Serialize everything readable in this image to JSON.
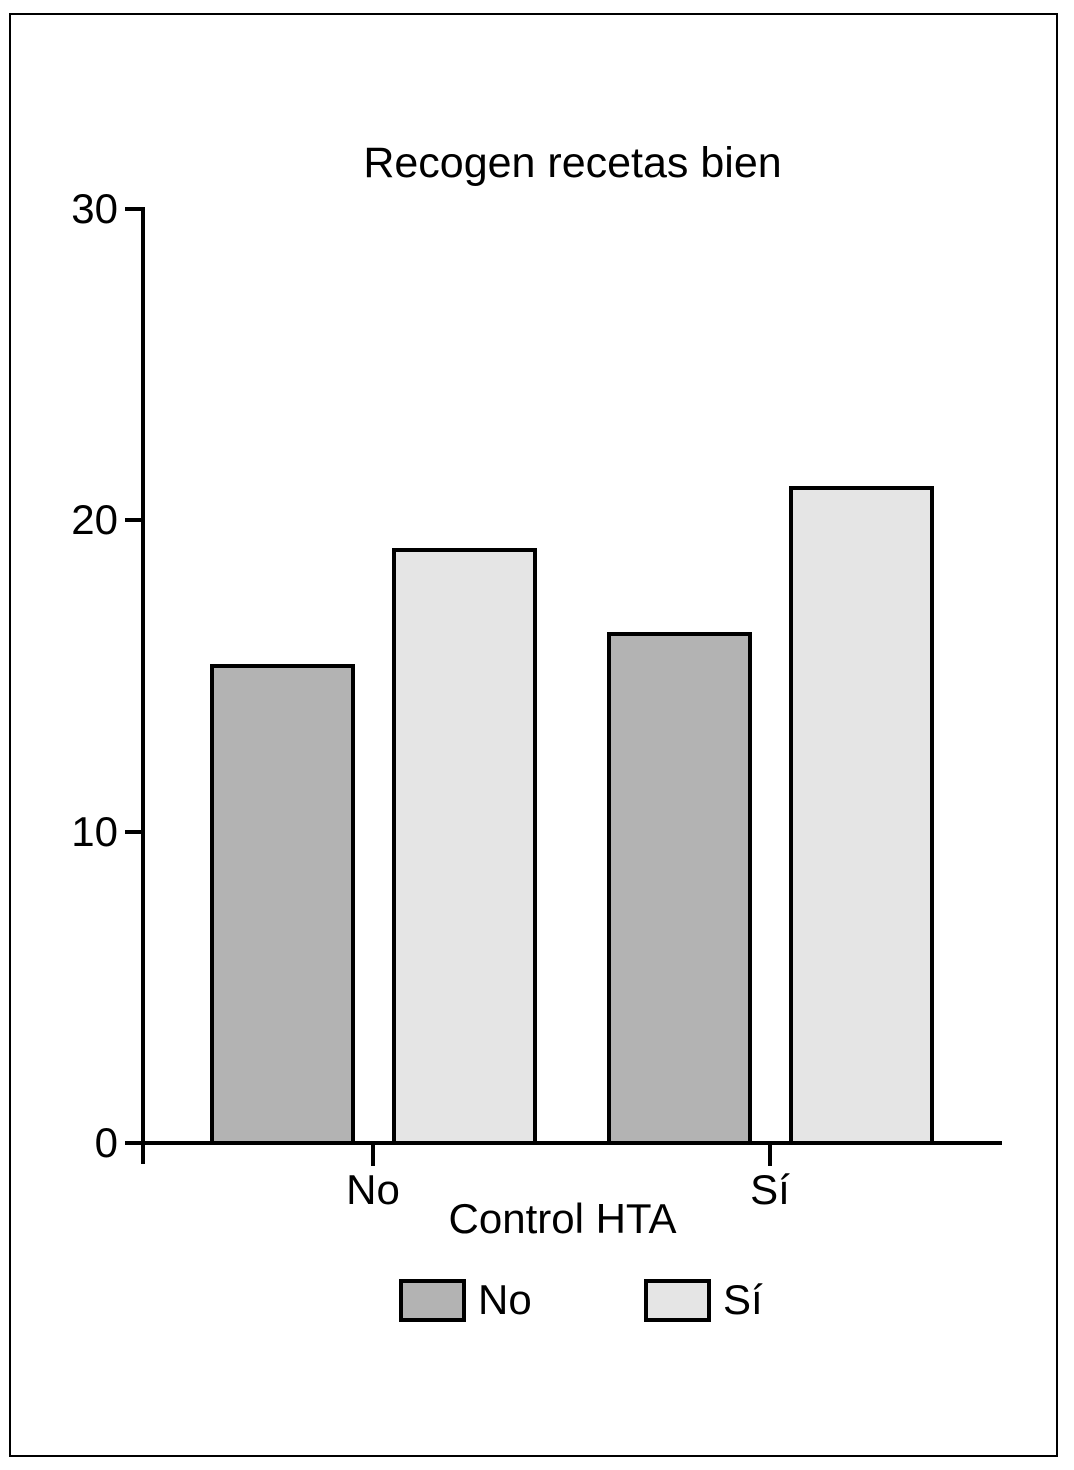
{
  "chart_data": {
    "type": "bar",
    "title": "Recogen recetas bien",
    "xlabel": "Control HTA",
    "ylabel": "",
    "categories": [
      "No",
      "Sí"
    ],
    "series": [
      {
        "name": "No",
        "color": "#b3b3b3",
        "values": [
          15.4,
          16.4
        ]
      },
      {
        "name": "Sí",
        "color": "#e5e5e5",
        "values": [
          19.1,
          21.1
        ]
      }
    ],
    "ylim": [
      0,
      30
    ],
    "yticks": [
      0,
      10,
      20,
      30
    ],
    "grid": false,
    "legend_position": "bottom",
    "bar_border_color": "#000000",
    "axis_color": "#000000"
  }
}
